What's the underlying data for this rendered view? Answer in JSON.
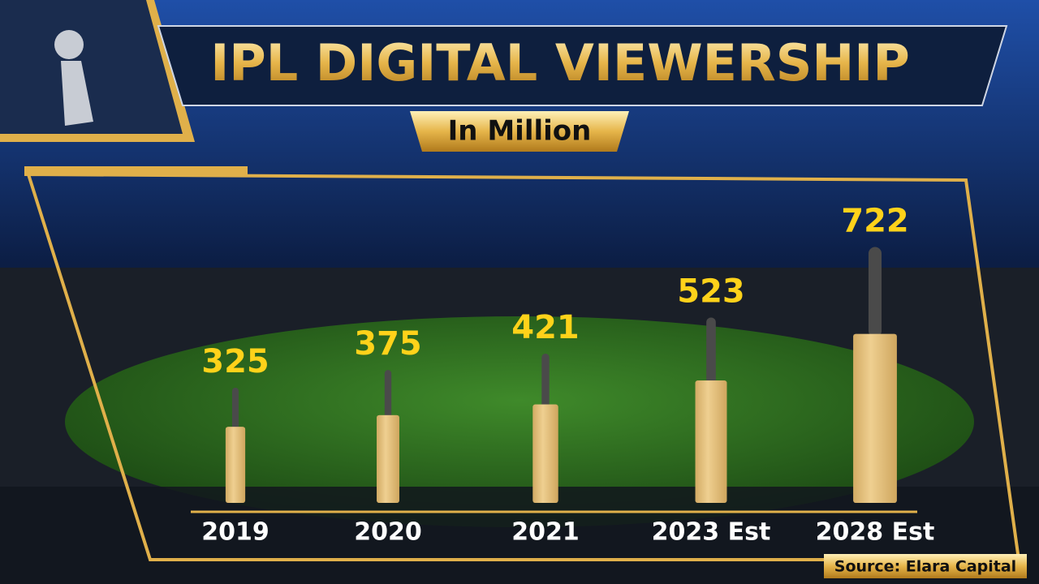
{
  "chart_data": {
    "type": "bar",
    "title": "IPL DIGITAL VIEWERSHIP",
    "subtitle": "In Million",
    "source": "Source: Elara Capital",
    "categories": [
      "2019",
      "2020",
      "2021",
      "2023 Est",
      "2028 Est"
    ],
    "values": [
      325,
      375,
      421,
      523,
      722
    ],
    "color": "#e8c27a",
    "handle_color": "#4a4a4a",
    "label_color": "#ffd21a"
  }
}
